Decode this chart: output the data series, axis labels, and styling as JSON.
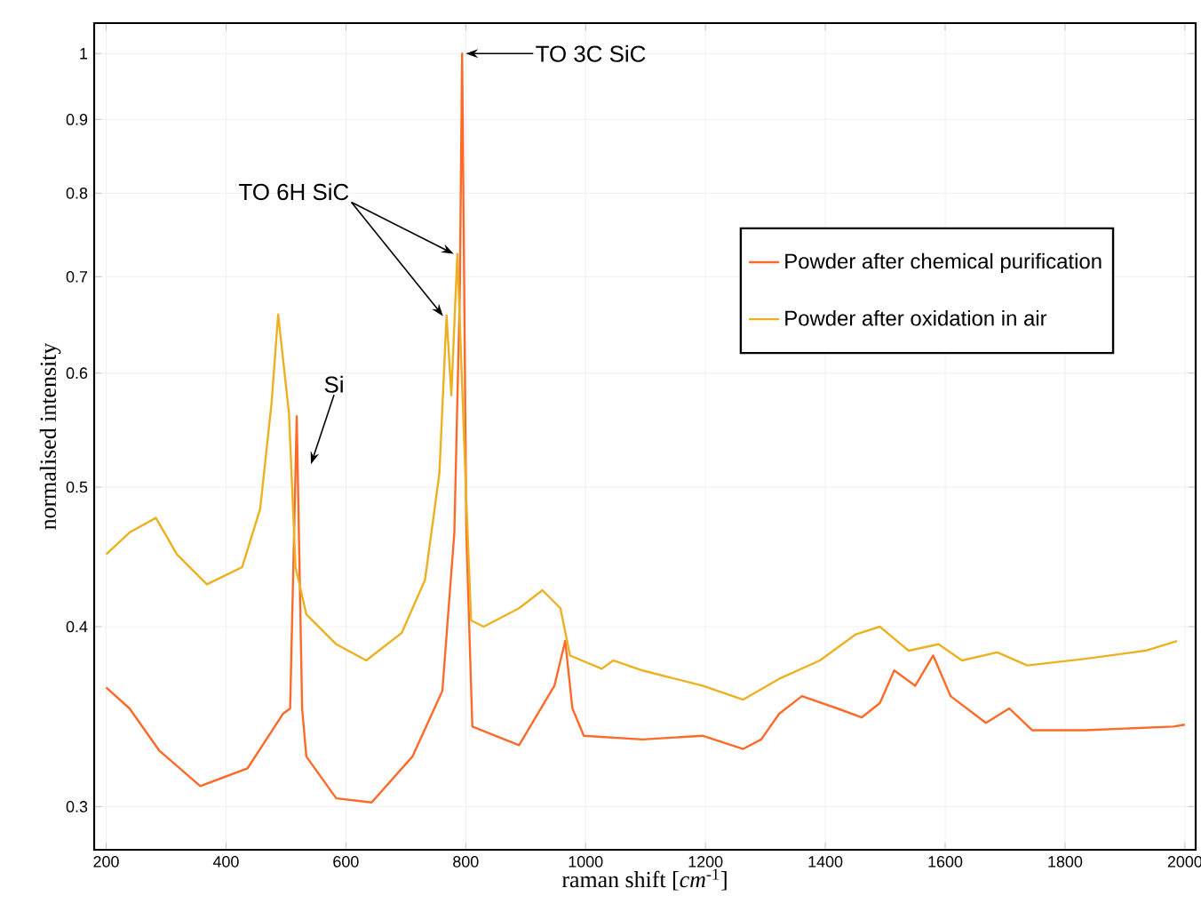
{
  "chart_data": {
    "type": "line",
    "xlabel": "raman shift [*cm*$^{-1}$]",
    "ylabel": "normalised intensity",
    "xlim": [
      180,
      2018
    ],
    "ylim": [
      0.28,
      1.05
    ],
    "xticks": [
      200,
      400,
      600,
      800,
      1000,
      1200,
      1400,
      1600,
      1800,
      2000
    ],
    "yticks": [
      0.3,
      0.4,
      0.5,
      0.6,
      0.7,
      0.8,
      0.9,
      1
    ],
    "log": "y",
    "grid": true,
    "legend": "top right",
    "marker": "none",
    "line_style": "solid",
    "series": [
      {
        "name": "Powder after chemical purification",
        "color": "#ff6a28",
        "x": [
          200,
          239,
          289,
          357,
          436,
          495,
          507,
          518,
          527,
          534,
          584,
          643,
          711,
          761,
          781,
          790,
          794,
          801,
          811,
          889,
          948,
          966,
          978,
          997,
          1095,
          1195,
          1263,
          1293,
          1323,
          1361,
          1420,
          1461,
          1491,
          1515,
          1550,
          1580,
          1609,
          1668,
          1707,
          1745,
          1834,
          1981,
          2000
        ],
        "values": [
          0.363,
          0.351,
          0.328,
          0.31,
          0.319,
          0.348,
          0.351,
          0.56,
          0.351,
          0.325,
          0.304,
          0.302,
          0.325,
          0.361,
          0.465,
          0.678,
          1.0,
          0.465,
          0.341,
          0.331,
          0.364,
          0.391,
          0.351,
          0.336,
          0.334,
          0.336,
          0.329,
          0.334,
          0.348,
          0.358,
          0.351,
          0.346,
          0.354,
          0.373,
          0.364,
          0.382,
          0.358,
          0.343,
          0.351,
          0.339,
          0.339,
          0.341,
          0.342
        ]
      },
      {
        "name": "Powder after oxidation in air",
        "color": "#edb120",
        "x": [
          200,
          239,
          283,
          318,
          368,
          427,
          457,
          476,
          487,
          505,
          516,
          534,
          584,
          634,
          693,
          732,
          756,
          768,
          776,
          786,
          801,
          809,
          830,
          889,
          928,
          958,
          974,
          1027,
          1046,
          1095,
          1195,
          1263,
          1323,
          1391,
          1450,
          1491,
          1539,
          1589,
          1628,
          1687,
          1737,
          1834,
          1934,
          1987
        ],
        "values": [
          0.449,
          0.465,
          0.476,
          0.449,
          0.428,
          0.44,
          0.483,
          0.572,
          0.659,
          0.563,
          0.44,
          0.408,
          0.389,
          0.379,
          0.396,
          0.431,
          0.511,
          0.658,
          0.579,
          0.726,
          0.489,
          0.404,
          0.4,
          0.412,
          0.424,
          0.412,
          0.382,
          0.374,
          0.379,
          0.373,
          0.364,
          0.356,
          0.368,
          0.379,
          0.395,
          0.4,
          0.385,
          0.389,
          0.379,
          0.384,
          0.376,
          0.38,
          0.385,
          0.391
        ]
      }
    ],
    "annotations": [
      {
        "text": "TO 3C SiC",
        "x": 794,
        "y": 1.0
      },
      {
        "text": "TO 6H SiC",
        "x": 786,
        "y": 0.726
      },
      {
        "text": "Si",
        "x": 518,
        "y": 0.56
      }
    ]
  }
}
